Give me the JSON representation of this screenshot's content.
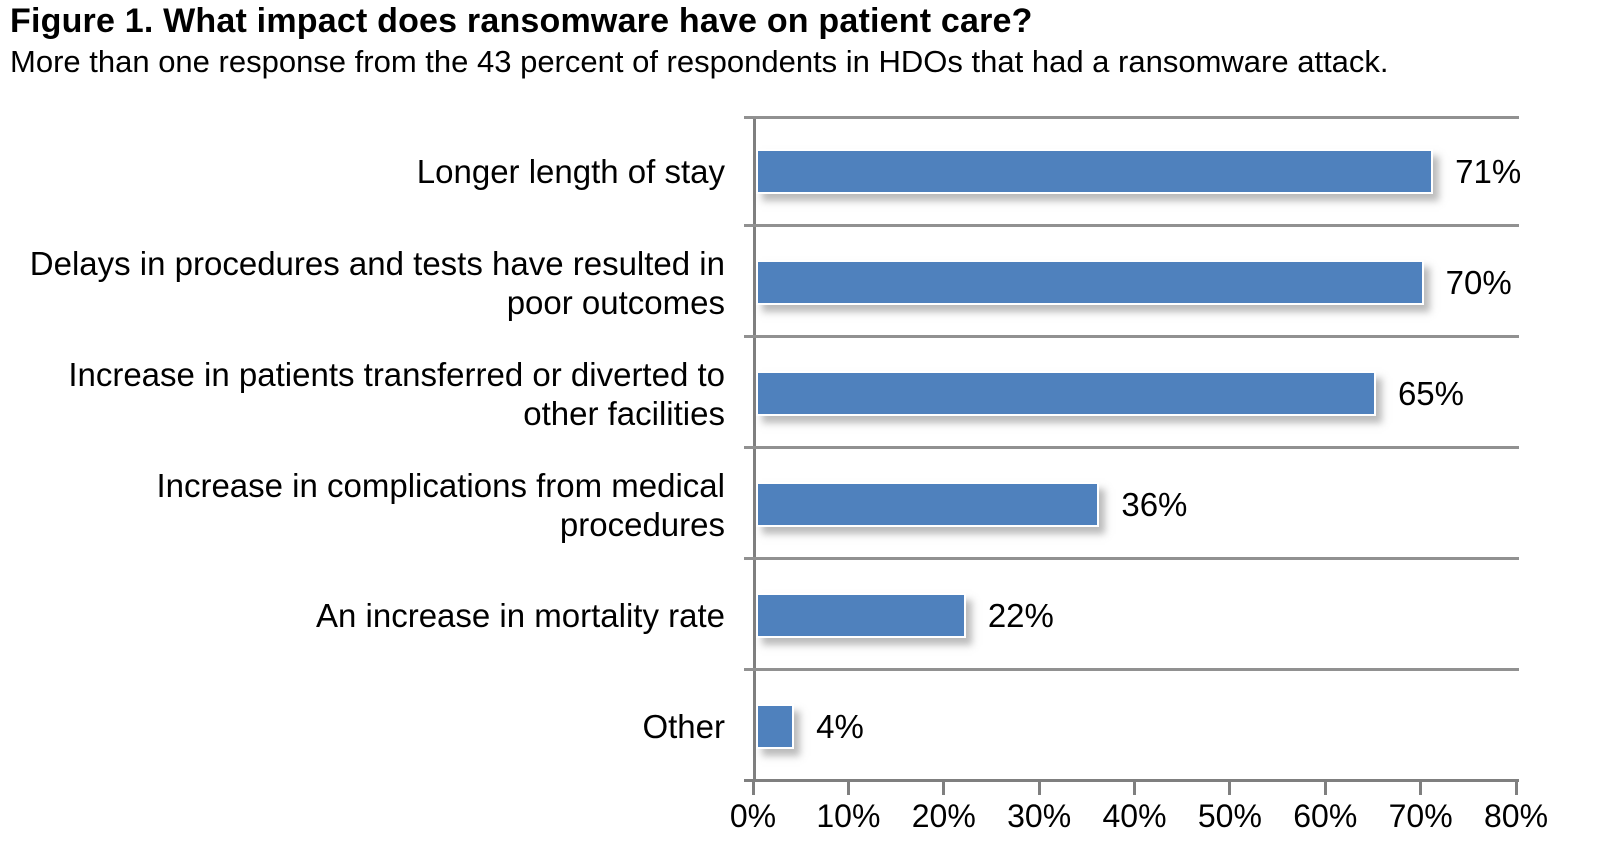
{
  "header": {
    "title": "Figure 1. What impact does ransomware have on patient care?",
    "subtitle": "More than one response from the 43 percent of respondents in HDOs that had a ransomware attack."
  },
  "chart_data": {
    "type": "bar",
    "orientation": "horizontal",
    "title": "Figure 1. What impact does ransomware have on patient care?",
    "subtitle": "More than one response from the 43 percent of respondents in HDOs that had a ransomware attack.",
    "categories": [
      "Longer length of stay",
      "Delays in procedures and tests have resulted in poor outcomes",
      "Increase in patients transferred or diverted to other facilities",
      "Increase in complications from medical procedures",
      "An increase in mortality rate",
      "Other"
    ],
    "values": [
      71,
      70,
      65,
      36,
      22,
      4
    ],
    "value_labels": [
      "71%",
      "70%",
      "65%",
      "36%",
      "22%",
      "4%"
    ],
    "x_ticks": [
      "0%",
      "10%",
      "20%",
      "30%",
      "40%",
      "50%",
      "60%",
      "70%",
      "80%"
    ],
    "x_tick_values": [
      0,
      10,
      20,
      30,
      40,
      50,
      60,
      70,
      80
    ],
    "xlim": [
      0,
      80
    ],
    "xlabel": "",
    "ylabel": "",
    "legend": "none",
    "grid": "row-separator-lines",
    "bar_color": "#4f81bd",
    "axis_line_color": "#7f7f7f",
    "separator_line_color": "#919191",
    "value_label_color": "#000000"
  }
}
